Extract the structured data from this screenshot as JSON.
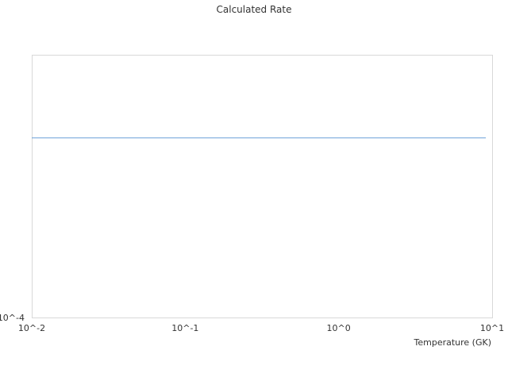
{
  "chart_data": {
    "type": "line",
    "title": "Calculated Rate",
    "xlabel": "Temperature (GK)",
    "ylabel": "",
    "x_scale": "log",
    "y_scale": "log",
    "xlim": [
      0.01,
      10
    ],
    "ylim": [
      0.0001,
      1
    ],
    "x_tick_labels": [
      "10^-2",
      "10^-1",
      "10^0",
      "10^1"
    ],
    "y_tick_labels": [
      "10^-4"
    ],
    "grid": false,
    "series": [
      {
        "x": [
          0.01,
          9.1
        ],
        "y": [
          0.055,
          0.055
        ],
        "color": "#6a9fd8"
      }
    ]
  }
}
